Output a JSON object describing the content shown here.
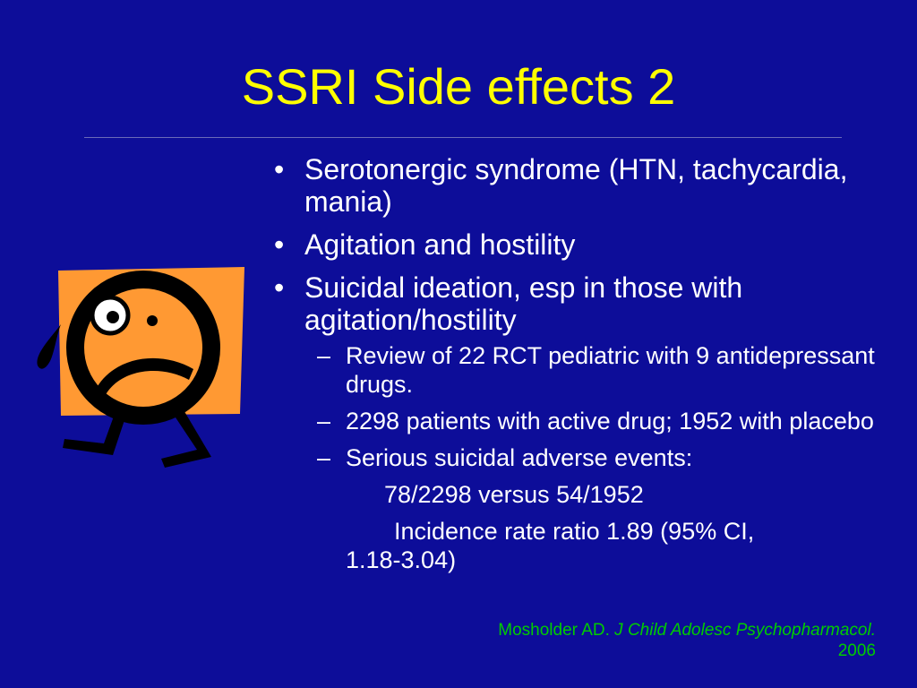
{
  "slide": {
    "title": "SSRI Side effects 2",
    "bullet_glyph": "•",
    "dash_glyph": "–",
    "bullets": [
      {
        "text": "Serotonergic syndrome (HTN, tachycardia, mania)"
      },
      {
        "text": "Agitation and hostility"
      },
      {
        "text": "Suicidal ideation, esp in those with agitation/hostility"
      }
    ],
    "sub_bullets": [
      {
        "text": "Review of 22 RCT pediatric with 9 antidepressant drugs."
      },
      {
        "text": "2298 patients with active drug;  1952 with placebo"
      },
      {
        "text": "Serious suicidal adverse events:"
      }
    ],
    "sub_detail_1": "78/2298 versus 54/1952",
    "sub_detail_2a": "Incidence rate ratio 1.89 (95% CI,",
    "sub_detail_2b": "1.18-3.04)",
    "citation": {
      "author": "Mosholder AD.",
      "journal": "J Child Adolesc Psychopharmacol.",
      "year": "2006"
    },
    "clipart_icon": "worried-face-running-clipart-icon",
    "colors": {
      "background": "#0d0d99",
      "title": "#ffff00",
      "text": "#ffffff",
      "citation": "#00cc00",
      "clipart_square": "#ff9933"
    }
  }
}
